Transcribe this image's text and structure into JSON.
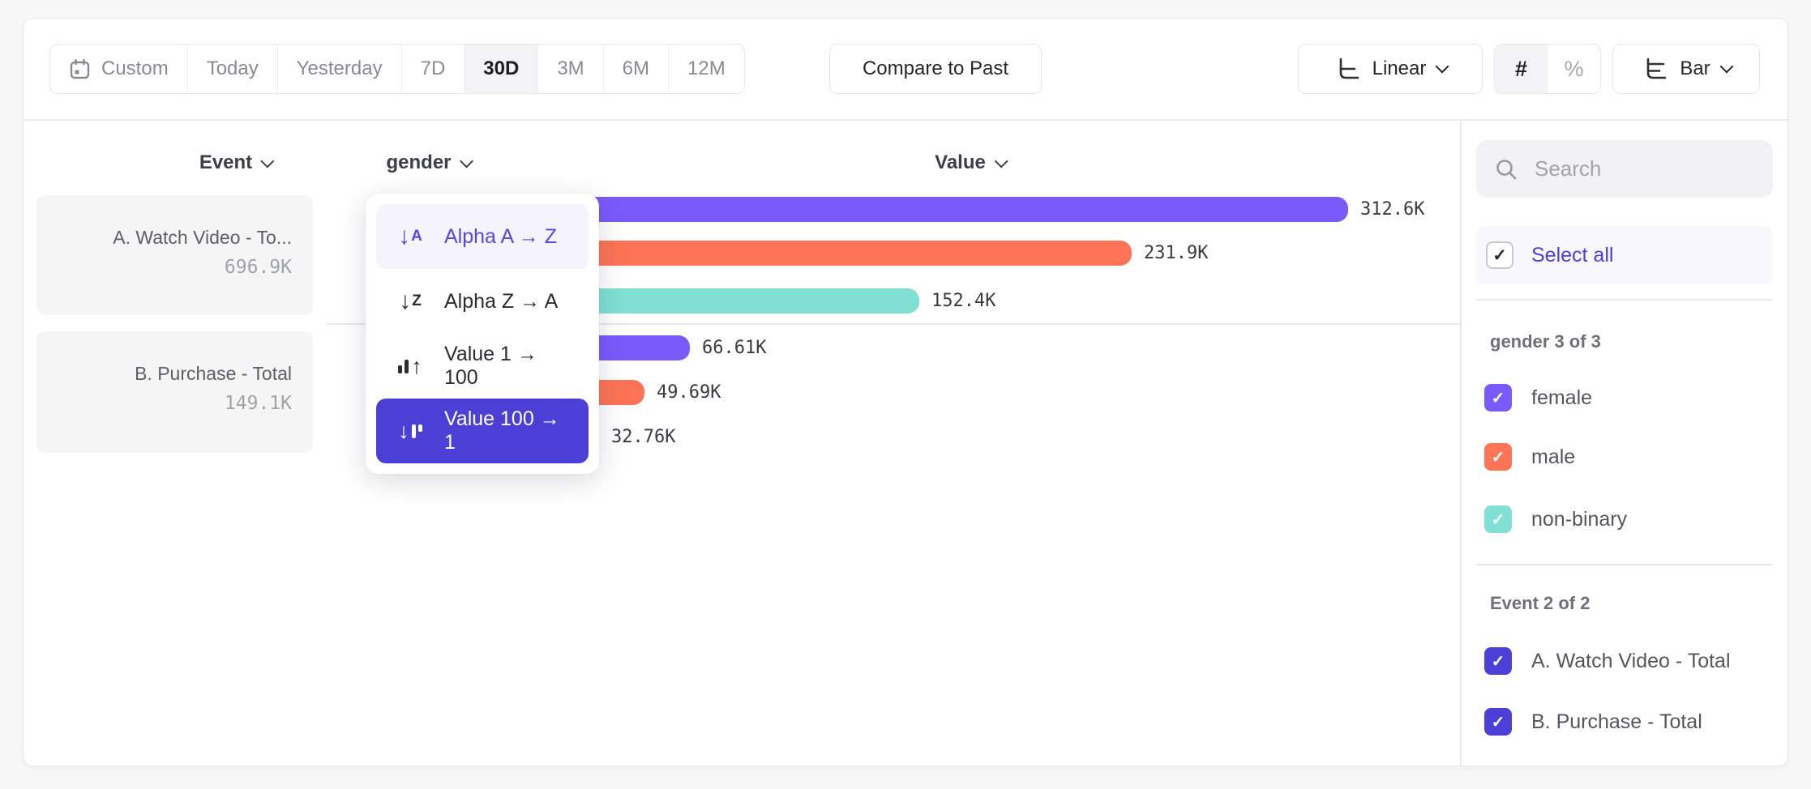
{
  "toolbar": {
    "date_ranges": [
      {
        "label": "Custom",
        "selected": false
      },
      {
        "label": "Today",
        "selected": false
      },
      {
        "label": "Yesterday",
        "selected": false
      },
      {
        "label": "7D",
        "selected": false
      },
      {
        "label": "30D",
        "selected": true
      },
      {
        "label": "3M",
        "selected": false
      },
      {
        "label": "6M",
        "selected": false
      },
      {
        "label": "12M",
        "selected": false
      }
    ],
    "compare_button": "Compare to Past",
    "scale_selector": "Linear",
    "value_format_toggle": {
      "absolute": "#",
      "percent": "%",
      "selected": "absolute"
    },
    "chart_type_selector": "Bar"
  },
  "columns": {
    "event": "Event",
    "breakdown": "gender",
    "value": "Value"
  },
  "events": [
    {
      "title": "A. Watch Video - To...",
      "total": "696.9K"
    },
    {
      "title": "B. Purchase - Total",
      "total": "149.1K"
    }
  ],
  "sort_menu": {
    "items": [
      {
        "label": "Alpha A → Z",
        "icon": "sort-alpha-asc-icon",
        "state": "hovered"
      },
      {
        "label": "Alpha Z → A",
        "icon": "sort-alpha-desc-icon",
        "state": "default"
      },
      {
        "label": "Value 1 → 100",
        "icon": "sort-value-asc-icon",
        "state": "default"
      },
      {
        "label": "Value 100 → 1",
        "icon": "sort-value-desc-icon",
        "state": "selected"
      }
    ]
  },
  "chart_data": {
    "type": "bar",
    "orientation": "horizontal",
    "groups": [
      "A. Watch Video - Total",
      "B. Purchase - Total"
    ],
    "categories": [
      "female",
      "male",
      "non-binary"
    ],
    "series": [
      {
        "name": "A. Watch Video - Total",
        "values_k": [
          312.6,
          231.9,
          152.4
        ],
        "labels": [
          "312.6K",
          "231.9K",
          "152.4K"
        ]
      },
      {
        "name": "B. Purchase - Total",
        "values_k": [
          66.61,
          49.69,
          32.76
        ],
        "labels": [
          "66.61K",
          "49.69K",
          "32.76K"
        ]
      }
    ],
    "bars": [
      {
        "group": 0,
        "category": "female",
        "value_k": 312.6,
        "label": "312.6K",
        "color": "#7B5AFB"
      },
      {
        "group": 0,
        "category": "male",
        "value_k": 231.9,
        "label": "231.9K",
        "color": "#FC7456"
      },
      {
        "group": 0,
        "category": "non-binary",
        "value_k": 152.4,
        "label": "152.4K",
        "color": "#7FE0D3"
      },
      {
        "group": 1,
        "category": "female",
        "value_k": 66.61,
        "label": "66.61K",
        "color": "#7B5AFB"
      },
      {
        "group": 1,
        "category": "male",
        "value_k": 49.69,
        "label": "49.69K",
        "color": "#FC7456"
      },
      {
        "group": 1,
        "category": "non-binary",
        "value_k": 32.76,
        "label": "32.76K",
        "color": "#7FE0D3"
      }
    ]
  },
  "sidebar": {
    "search_placeholder": "Search",
    "select_all_label": "Select all",
    "sections": [
      {
        "title": "gender 3 of 3",
        "items": [
          {
            "label": "female",
            "color": "#7B5AFB",
            "checked": true
          },
          {
            "label": "male",
            "color": "#FC7456",
            "checked": true
          },
          {
            "label": "non-binary",
            "color": "#7FE0D3",
            "checked": true
          }
        ]
      },
      {
        "title": "Event 2 of 2",
        "items": [
          {
            "label": "A. Watch Video - Total",
            "color": "#4C3FD8",
            "checked": true
          },
          {
            "label": "B. Purchase - Total",
            "color": "#4C3FD8",
            "checked": true
          }
        ]
      }
    ]
  },
  "colors": {
    "accent_purple": "#7B5AFB",
    "accent_orange": "#FC7456",
    "accent_teal": "#7FE0D3",
    "selected_indigo": "#4B3FD6",
    "link_purple": "#5348E0"
  }
}
